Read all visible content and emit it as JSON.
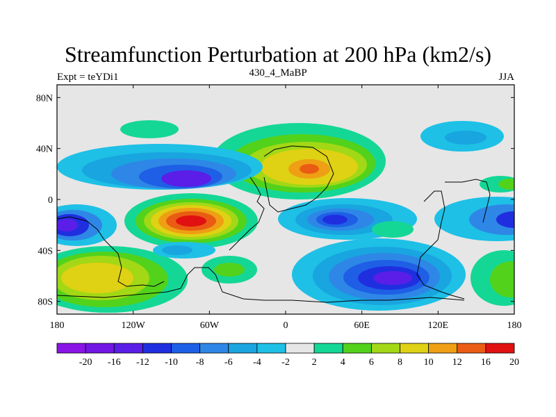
{
  "chart_data": {
    "type": "contour",
    "title": "Streamfunction Perturbation at 200 hPa (km2/s)",
    "subtitle_left": "Expt = teYDi1",
    "subtitle_center": "430_4_MaBP",
    "subtitle_right": "JJA",
    "x_ticks": [
      "180",
      "120W",
      "60W",
      "0",
      "60E",
      "120E",
      "180"
    ],
    "x_tick_values": [
      -180,
      -120,
      -60,
      0,
      60,
      120,
      180
    ],
    "y_ticks": [
      "80N",
      "40N",
      "0",
      "40S",
      "80S"
    ],
    "y_tick_values": [
      80,
      40,
      0,
      -40,
      -80
    ],
    "xlim": [
      -180,
      180
    ],
    "ylim": [
      -90,
      90
    ],
    "colorbar_labels": [
      "-20",
      "-16",
      "-12",
      "-10",
      "-8",
      "-6",
      "-4",
      "-2",
      "2",
      "4",
      "6",
      "8",
      "10",
      "12",
      "16",
      "20"
    ],
    "colorbar_colors": [
      "#8a14e6",
      "#7116e4",
      "#5a1ee8",
      "#1f2fe0",
      "#1e5fe6",
      "#2e87e6",
      "#19a5e0",
      "#1ec0e6",
      "#e6e6e6",
      "#14d796",
      "#52d21b",
      "#a2d816",
      "#dfd113",
      "#ee9f14",
      "#ea5b13",
      "#e11111"
    ],
    "features": [
      {
        "name": "high-north-atlantic-africa",
        "lon": 15,
        "lat": 20,
        "peak": 14
      },
      {
        "name": "high-tropical-atlantic",
        "lon": -70,
        "lat": -18,
        "peak": 18
      },
      {
        "name": "high-south-pacific",
        "lon": -140,
        "lat": -60,
        "peak": 10
      },
      {
        "name": "high-southeast-pacific",
        "lon": 170,
        "lat": -60,
        "peak": 6
      },
      {
        "name": "low-north-pacific",
        "lon": -80,
        "lat": 15,
        "peak": -14
      },
      {
        "name": "low-southern-ocean",
        "lon": 75,
        "lat": -62,
        "peak": -16
      },
      {
        "name": "low-indian-ocean",
        "lon": 40,
        "lat": -15,
        "peak": -10
      },
      {
        "name": "low-west-pacific",
        "lon": -175,
        "lat": -20,
        "peak": -12
      }
    ]
  }
}
